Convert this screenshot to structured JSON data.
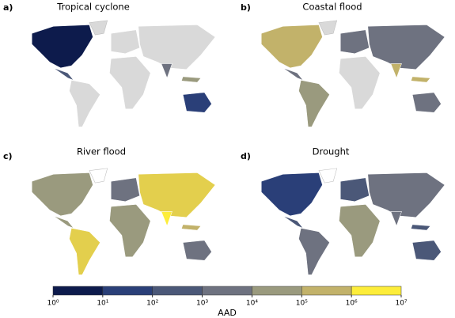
{
  "panels": [
    {
      "label": "a)",
      "title": "Tropical cyclone"
    },
    {
      "label": "b)",
      "title": "Coastal flood"
    },
    {
      "label": "c)",
      "title": "River flood"
    },
    {
      "label": "d)",
      "title": "Drought"
    }
  ],
  "colorbar": {
    "label": "AAD",
    "scale": "log",
    "lim": [
      1,
      10000000
    ],
    "ticks": [
      {
        "value": 1,
        "label": "10⁰"
      },
      {
        "value": 10,
        "label": "10¹"
      },
      {
        "value": 100,
        "label": "10²"
      },
      {
        "value": 1000,
        "label": "10³"
      },
      {
        "value": 10000,
        "label": "10⁴"
      },
      {
        "value": 100000,
        "label": "10⁵"
      },
      {
        "value": 1000000,
        "label": "10⁶"
      },
      {
        "value": 10000000,
        "label": "10⁷"
      }
    ],
    "colors": [
      "#0d1b4c",
      "#2a3f78",
      "#4b5878",
      "#6e7280",
      "#9a9a7e",
      "#c2b26a",
      "#fded3a"
    ]
  }
}
